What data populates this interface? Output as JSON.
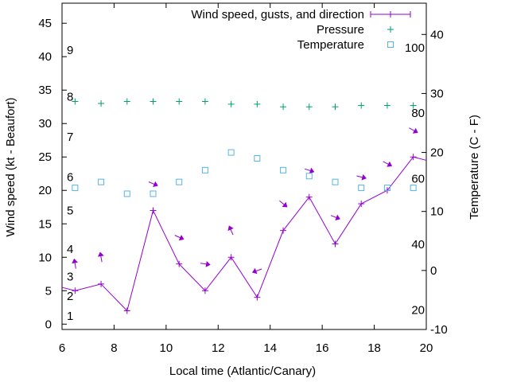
{
  "chart_data": {
    "type": "line",
    "title": "",
    "xlabel": "Local time (Atlantic/Canary)",
    "ylabel": "Wind speed (kt - Beaufort)",
    "y2label": "Temperature (C - F)",
    "xlim": [
      6,
      20
    ],
    "ylim": [
      -0.8,
      48
    ],
    "y2lim": [
      -10,
      45.3
    ],
    "xticks": [
      6,
      8,
      10,
      12,
      14,
      16,
      18,
      20
    ],
    "yticks": [
      0,
      5,
      10,
      15,
      20,
      25,
      30,
      35,
      40,
      45
    ],
    "y2ticks": [
      -10,
      0,
      10,
      20,
      30,
      40
    ],
    "grid": false,
    "legend_position": "top-right",
    "colors": {
      "wind": "#9400d3",
      "pressure": "#009e73",
      "temperature": "#56b4e9"
    },
    "x": [
      6.5,
      7.5,
      8.5,
      9.5,
      10.5,
      11.5,
      12.5,
      13.5,
      14.5,
      15.5,
      16.5,
      17.5,
      18.5,
      19.5
    ],
    "series": [
      {
        "name": "Wind speed, gusts, and direction",
        "axis": "y",
        "values": [
          5,
          6,
          2,
          17,
          9,
          5,
          10,
          4,
          14,
          19,
          12,
          18,
          20,
          25
        ],
        "line_start": [
          6,
          5.5
        ],
        "line_end": [
          20,
          24.5
        ],
        "gusts": [
          9,
          10,
          null,
          21,
          13,
          9,
          14,
          8,
          18,
          23,
          16,
          22,
          24,
          29
        ],
        "arrow_bearing_deg": [
          350,
          350,
          null,
          113,
          114,
          99,
          336,
          250,
          129,
          108,
          111,
          104,
          117,
          119
        ]
      },
      {
        "name": "Pressure",
        "axis": "y",
        "values": [
          33.3,
          33.0,
          33.3,
          33.3,
          33.3,
          33.3,
          32.9,
          32.9,
          32.5,
          32.5,
          32.5,
          32.7,
          32.7,
          32.7
        ]
      },
      {
        "name": "Temperature",
        "axis": "y2",
        "values": [
          14,
          15,
          13,
          13,
          15,
          17,
          20,
          19,
          17,
          16,
          15,
          14,
          14,
          14
        ]
      }
    ],
    "beaufort_labels": [
      {
        "label": "1",
        "kt": 1.2
      },
      {
        "label": "2",
        "kt": 4.2
      },
      {
        "label": "3",
        "kt": 7.1
      },
      {
        "label": "4",
        "kt": 11.2
      },
      {
        "label": "5",
        "kt": 17
      },
      {
        "label": "6",
        "kt": 22
      },
      {
        "label": "7",
        "kt": 28
      },
      {
        "label": "8",
        "kt": 34
      },
      {
        "label": "9",
        "kt": 41
      }
    ],
    "fahrenheit_labels": [
      "20",
      "40",
      "60",
      "80",
      "100"
    ]
  }
}
